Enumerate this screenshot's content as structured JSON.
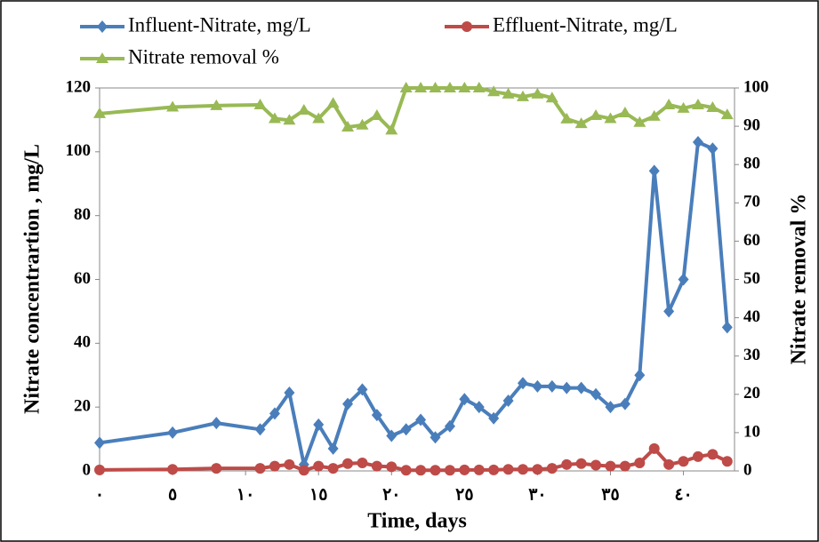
{
  "chart_data": {
    "type": "line",
    "x_label": "Time, days",
    "y_label": "Nitrate concentrartion , mg/L",
    "y2_label": "Nitrate removal %",
    "xlim": [
      0,
      43.5
    ],
    "xticks": [
      {
        "value": 0,
        "label": "٠"
      },
      {
        "value": 5,
        "label": "٥"
      },
      {
        "value": 10,
        "label": "١٠"
      },
      {
        "value": 15,
        "label": "١٥"
      },
      {
        "value": 20,
        "label": "٢٠"
      },
      {
        "value": 25,
        "label": "٢٥"
      },
      {
        "value": 30,
        "label": "٣٠"
      },
      {
        "value": 35,
        "label": "٣٥"
      },
      {
        "value": 40,
        "label": "٤٠"
      }
    ],
    "ylim": [
      0,
      120
    ],
    "yticks": [
      0,
      20,
      40,
      60,
      80,
      100,
      120
    ],
    "y2lim": [
      0,
      100
    ],
    "y2ticks": [
      0,
      10,
      20,
      30,
      40,
      50,
      60,
      70,
      80,
      90,
      100
    ],
    "x": [
      0,
      5,
      8,
      11,
      12,
      13,
      14,
      15,
      16,
      17,
      18,
      19,
      20,
      21,
      22,
      23,
      24,
      25,
      26,
      27,
      28,
      29,
      30,
      31,
      32,
      33,
      34,
      35,
      36,
      37,
      38,
      39,
      40,
      41,
      42,
      43
    ],
    "series": [
      {
        "name": "Influent-Nitrate, mg/L",
        "color": "#4a7ebb",
        "marker": "diamond",
        "values": [
          8.8,
          12,
          15,
          13,
          18,
          24.5,
          2,
          14.5,
          7,
          21,
          25.5,
          17.5,
          11,
          13,
          16,
          10.5,
          14,
          22.5,
          20,
          16.5,
          22,
          27.5,
          26.5,
          26.5,
          26,
          26,
          24,
          20,
          21,
          30,
          94,
          50,
          60,
          103,
          101,
          45
        ]
      },
      {
        "name": "Effluent-Nitrate, mg/L",
        "color": "#be4b48",
        "marker": "circle",
        "values": [
          0.3,
          0.5,
          0.8,
          0.8,
          1.5,
          2,
          0.2,
          1.5,
          0.8,
          2.3,
          2.5,
          1.5,
          1.3,
          0.2,
          0.2,
          0.2,
          0.2,
          0.3,
          0.3,
          0.3,
          0.5,
          0.5,
          0.5,
          0.8,
          2,
          2.3,
          1.8,
          1.5,
          1.5,
          2.5,
          7,
          2,
          3,
          4.5,
          5.2,
          3
        ]
      },
      {
        "name": "Nitrate removal %",
        "color": "#98b954",
        "marker": "triangle",
        "axis": "y2",
        "values": [
          93.3,
          95,
          95.4,
          95.6,
          92,
          91.6,
          94.2,
          92,
          96,
          89.8,
          90.3,
          92.8,
          89,
          100,
          100,
          100,
          100,
          100,
          100,
          99,
          98.4,
          97.7,
          98.4,
          97.4,
          91.9,
          90.7,
          92.8,
          92,
          93.5,
          91,
          92.6,
          95.6,
          94.7,
          95.6,
          94.9,
          93
        ]
      }
    ]
  }
}
